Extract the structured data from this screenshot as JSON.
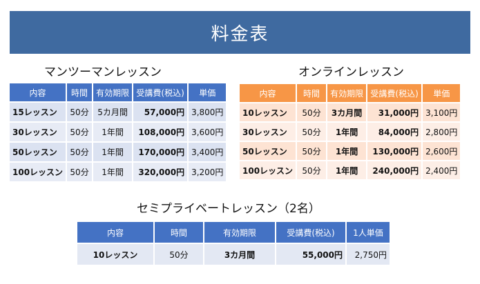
{
  "title": "料金表",
  "sections": {
    "man": {
      "heading": "マンツーマンレッスン",
      "headers": [
        "内容",
        "時間",
        "有効期限",
        "受講費(税込)",
        "単価"
      ],
      "rows": [
        [
          "15レッスン",
          "50分",
          "5カ月間",
          "57,000円",
          "3,800円"
        ],
        [
          "30レッスン",
          "50分",
          "1年間",
          "108,000円",
          "3,600円"
        ],
        [
          "50レッスン",
          "50分",
          "1年間",
          "170,000円",
          "3,400円"
        ],
        [
          "100レッスン",
          "50分",
          "1年間",
          "320,000円",
          "3,200円"
        ]
      ]
    },
    "online": {
      "heading": "オンラインレッスン",
      "headers": [
        "内容",
        "時間",
        "有効期限",
        "受講費(税込)",
        "単価"
      ],
      "rows": [
        [
          "10レッスン",
          "50分",
          "3カ月間",
          "31,000円",
          "3,100円"
        ],
        [
          "30レッスン",
          "50分",
          "1年間",
          "84,000円",
          "2,800円"
        ],
        [
          "50レッスン",
          "50分",
          "1年間",
          "130,000円",
          "2,600円"
        ],
        [
          "100レッスン",
          "50分",
          "1年間",
          "240,000円",
          "2,400円"
        ]
      ]
    },
    "semi": {
      "heading": "セミプライベートレッスン（2名）",
      "headers": [
        "内容",
        "時間",
        "有効期限",
        "受講費(税込)",
        "1人単価"
      ],
      "rows": [
        [
          "10レッスン",
          "50分",
          "3カ月間",
          "55,000円",
          "2,750円"
        ]
      ]
    }
  },
  "colors": {
    "banner": "#3f6aa0",
    "blue_header": "#4472c4",
    "orange_header": "#f79646"
  }
}
